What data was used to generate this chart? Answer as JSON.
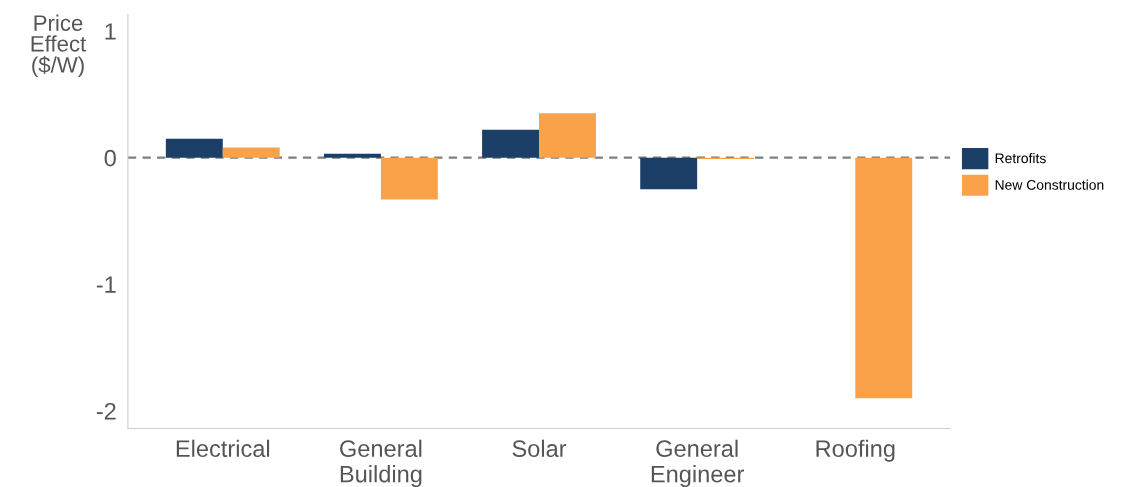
{
  "chart_data": {
    "type": "bar",
    "ylabel": "Price\nEffect\n($/W)",
    "categories": [
      "Electrical",
      "General\nBuilding",
      "Solar",
      "General\nEngineer",
      "Roofing"
    ],
    "series": [
      {
        "name": "Retrofits",
        "color": "#1b3f66",
        "values": [
          0.15,
          0.03,
          0.22,
          -0.25,
          null
        ]
      },
      {
        "name": "New Construction",
        "color": "#f9a24a",
        "values": [
          0.08,
          -0.33,
          0.35,
          -0.01,
          -1.9
        ]
      }
    ],
    "ylim": [
      -2.14,
      1.13
    ],
    "yticks": [
      -2,
      -1,
      0,
      1
    ],
    "ref_lines": [
      {
        "axis": "y",
        "value": 0,
        "color": "#7f7f7f",
        "line_style": "dashed"
      }
    ],
    "grid": false,
    "legend": "right"
  }
}
